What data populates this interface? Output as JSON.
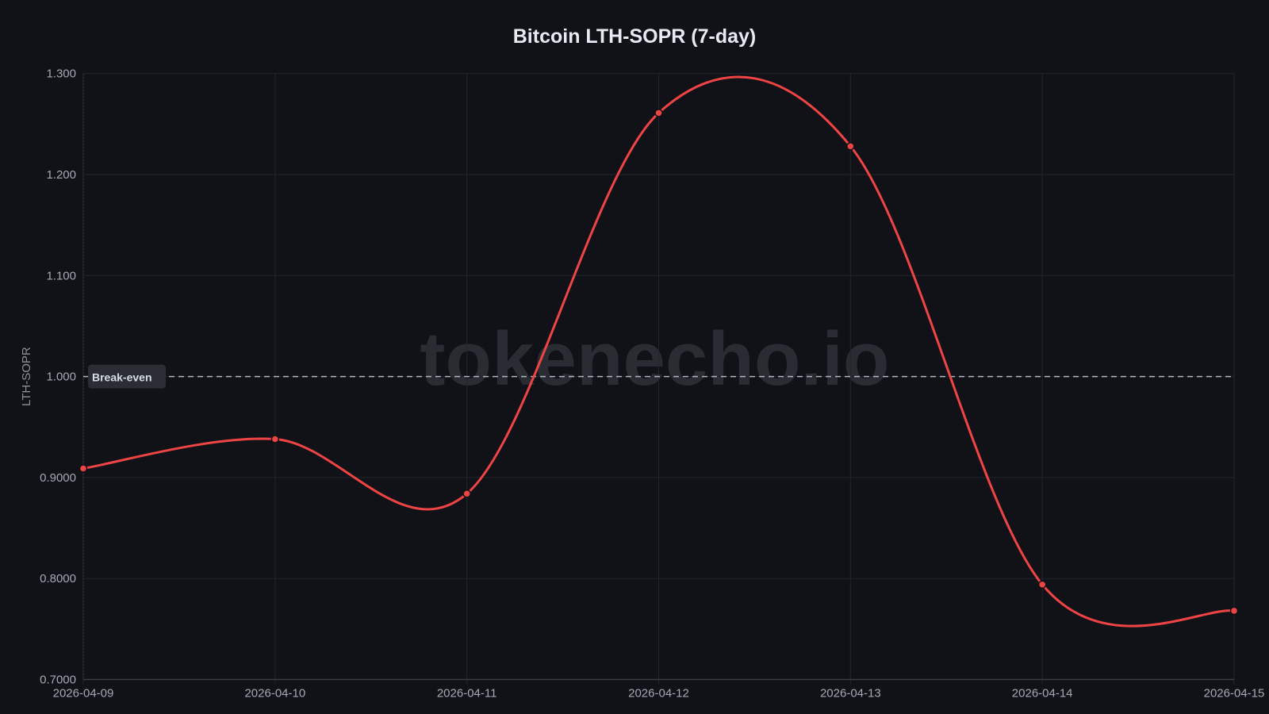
{
  "chart_data": {
    "type": "line",
    "title": "Bitcoin LTH-SOPR (7-day)",
    "xlabel": "",
    "ylabel": "LTH-SOPR",
    "categories": [
      "2026-04-09",
      "2026-04-10",
      "2026-04-11",
      "2026-04-12",
      "2026-04-13",
      "2026-04-14",
      "2026-04-15"
    ],
    "series": [
      {
        "name": "LTH-SOPR",
        "color": "#ef4444",
        "values": [
          0.909,
          0.938,
          0.884,
          1.261,
          1.228,
          0.794,
          0.768
        ]
      }
    ],
    "ylim": [
      0.7,
      1.3
    ],
    "yticks": [
      "1.300",
      "1.200",
      "1.100",
      "1.000",
      "0.9000",
      "0.8000",
      "0.7000"
    ],
    "ytick_values": [
      1.3,
      1.2,
      1.1,
      1.0,
      0.9,
      0.8,
      0.7
    ],
    "grid": true,
    "legend": null,
    "smooth": true,
    "annotations": [
      {
        "type": "hline",
        "y": 1.0,
        "label": "Break-even",
        "style": "dashed",
        "color": "#c9ced8"
      }
    ],
    "watermark": "tokenecho.io"
  },
  "colors": {
    "background": "#111218",
    "grid": "#23252c",
    "line": "#ef4444",
    "tick": "#a3a9b5"
  }
}
